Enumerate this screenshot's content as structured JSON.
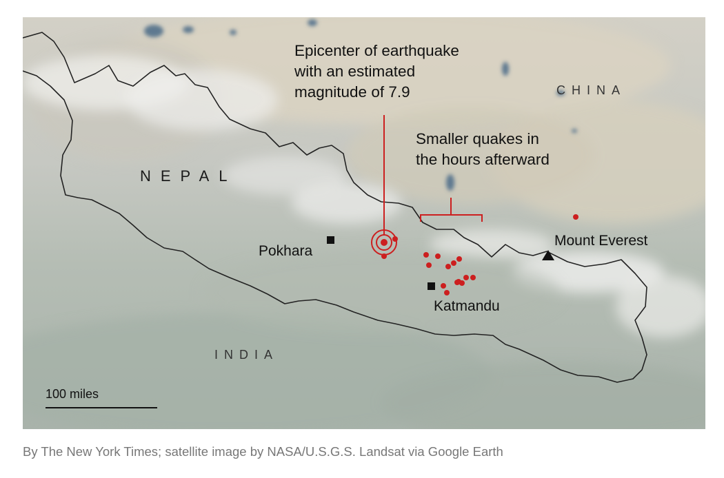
{
  "map": {
    "countries": {
      "nepal": "NEPAL",
      "china": "CHINA",
      "india": "INDIA"
    },
    "places": {
      "pokhara": "Pokhara",
      "katmandu": "Katmandu",
      "everest": "Mount Everest"
    },
    "epicenter_annotation": [
      "Epicenter of earthquake",
      "with an estimated",
      "magnitude of 7.9"
    ],
    "aftershock_annotation": [
      "Smaller quakes in",
      "the hours afterward"
    ],
    "scale_label": "100 miles"
  },
  "colors": {
    "quake_red": "#cc1f1f",
    "border": "#222222"
  },
  "credit": "By The New York Times; satellite image by NASA/U.S.G.S. Landsat via Google Earth"
}
